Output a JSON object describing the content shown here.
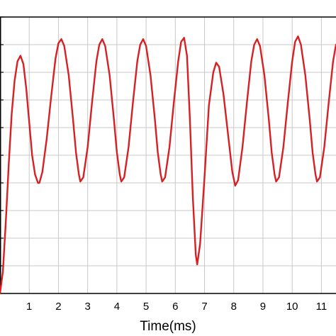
{
  "chart_data": {
    "type": "line",
    "title": "",
    "xlabel": "Time(ms)",
    "ylabel": "",
    "xlim": [
      0.0,
      11.5
    ],
    "ylim": [
      0,
      10
    ],
    "x_ticks": [
      1,
      2,
      3,
      4,
      5,
      6,
      7,
      8,
      9,
      10,
      11
    ],
    "x_tick_labels": [
      "1",
      "2",
      "3",
      "4",
      "5",
      "6",
      "7",
      "8",
      "9",
      "10",
      "11"
    ],
    "y_gridlines": [
      1,
      2,
      3,
      4,
      5,
      6,
      7,
      8,
      9,
      10
    ],
    "grid": true,
    "legend": "none",
    "series": [
      {
        "color": "#d62024",
        "points": [
          [
            0.0,
            0.0
          ],
          [
            0.1,
            0.8
          ],
          [
            0.2,
            2.6
          ],
          [
            0.3,
            4.7
          ],
          [
            0.4,
            6.5
          ],
          [
            0.5,
            7.7
          ],
          [
            0.6,
            8.4
          ],
          [
            0.7,
            8.6
          ],
          [
            0.8,
            8.3
          ],
          [
            0.9,
            7.4
          ],
          [
            1.0,
            6.2
          ],
          [
            1.1,
            5.0
          ],
          [
            1.2,
            4.3
          ],
          [
            1.3,
            4.0
          ],
          [
            1.35,
            4.0
          ],
          [
            1.45,
            4.4
          ],
          [
            1.6,
            5.6
          ],
          [
            1.75,
            7.1
          ],
          [
            1.9,
            8.5
          ],
          [
            2.0,
            9.05
          ],
          [
            2.1,
            9.2
          ],
          [
            2.2,
            8.95
          ],
          [
            2.35,
            7.9
          ],
          [
            2.5,
            6.3
          ],
          [
            2.6,
            5.1
          ],
          [
            2.7,
            4.3
          ],
          [
            2.75,
            4.05
          ],
          [
            2.85,
            4.2
          ],
          [
            3.0,
            5.3
          ],
          [
            3.15,
            6.9
          ],
          [
            3.3,
            8.4
          ],
          [
            3.4,
            9.0
          ],
          [
            3.5,
            9.2
          ],
          [
            3.6,
            8.95
          ],
          [
            3.75,
            7.9
          ],
          [
            3.9,
            6.3
          ],
          [
            4.0,
            5.1
          ],
          [
            4.1,
            4.3
          ],
          [
            4.15,
            4.05
          ],
          [
            4.25,
            4.2
          ],
          [
            4.4,
            5.3
          ],
          [
            4.55,
            6.9
          ],
          [
            4.7,
            8.4
          ],
          [
            4.8,
            9.0
          ],
          [
            4.9,
            9.2
          ],
          [
            5.0,
            8.95
          ],
          [
            5.15,
            7.9
          ],
          [
            5.3,
            6.3
          ],
          [
            5.4,
            5.1
          ],
          [
            5.5,
            4.3
          ],
          [
            5.55,
            4.05
          ],
          [
            5.65,
            4.2
          ],
          [
            5.8,
            5.3
          ],
          [
            5.95,
            6.9
          ],
          [
            6.1,
            8.4
          ],
          [
            6.2,
            9.1
          ],
          [
            6.3,
            9.25
          ],
          [
            6.4,
            8.6
          ],
          [
            6.5,
            6.3
          ],
          [
            6.6,
            3.5
          ],
          [
            6.7,
            1.4
          ],
          [
            6.75,
            1.05
          ],
          [
            6.85,
            1.8
          ],
          [
            7.0,
            4.2
          ],
          [
            7.15,
            6.8
          ],
          [
            7.3,
            8.0
          ],
          [
            7.4,
            8.35
          ],
          [
            7.5,
            8.2
          ],
          [
            7.65,
            7.2
          ],
          [
            7.8,
            5.8
          ],
          [
            7.95,
            4.4
          ],
          [
            8.05,
            3.9
          ],
          [
            8.15,
            4.1
          ],
          [
            8.3,
            5.3
          ],
          [
            8.45,
            6.9
          ],
          [
            8.6,
            8.4
          ],
          [
            8.7,
            9.0
          ],
          [
            8.8,
            9.2
          ],
          [
            8.9,
            8.95
          ],
          [
            9.05,
            7.9
          ],
          [
            9.2,
            6.3
          ],
          [
            9.3,
            5.1
          ],
          [
            9.4,
            4.3
          ],
          [
            9.45,
            4.05
          ],
          [
            9.55,
            4.2
          ],
          [
            9.7,
            5.3
          ],
          [
            9.85,
            6.9
          ],
          [
            10.0,
            8.4
          ],
          [
            10.1,
            9.1
          ],
          [
            10.2,
            9.3
          ],
          [
            10.3,
            9.0
          ],
          [
            10.45,
            7.9
          ],
          [
            10.6,
            6.3
          ],
          [
            10.7,
            5.1
          ],
          [
            10.8,
            4.3
          ],
          [
            10.85,
            4.05
          ],
          [
            10.95,
            4.2
          ],
          [
            11.1,
            5.3
          ],
          [
            11.25,
            6.9
          ],
          [
            11.4,
            8.4
          ],
          [
            11.5,
            9.0
          ]
        ]
      }
    ]
  }
}
